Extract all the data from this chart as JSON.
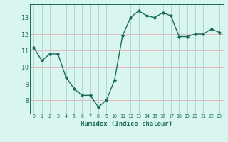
{
  "x": [
    0,
    1,
    2,
    3,
    4,
    5,
    6,
    7,
    8,
    9,
    10,
    11,
    12,
    13,
    14,
    15,
    16,
    17,
    18,
    19,
    20,
    21,
    22,
    23
  ],
  "y": [
    11.2,
    10.4,
    10.8,
    10.8,
    9.4,
    8.7,
    8.3,
    8.3,
    7.6,
    8.0,
    9.2,
    11.9,
    13.0,
    13.4,
    13.1,
    13.0,
    13.3,
    13.1,
    11.85,
    11.85,
    12.0,
    12.0,
    12.3,
    12.1
  ],
  "xlabel": "Humidex (Indice chaleur)",
  "line_color": "#1a6b5a",
  "marker": "D",
  "marker_size": 1.8,
  "bg_color": "#d9f5f0",
  "grid_color": "#b0d8d0",
  "tick_label_color": "#1a6b5a",
  "xlabel_color": "#1a6b5a",
  "ylim": [
    7.2,
    13.8
  ],
  "xlim": [
    -0.5,
    23.5
  ],
  "yticks": [
    8,
    9,
    10,
    11,
    12,
    13
  ],
  "xticks": [
    0,
    1,
    2,
    3,
    4,
    5,
    6,
    7,
    8,
    9,
    10,
    11,
    12,
    13,
    14,
    15,
    16,
    17,
    18,
    19,
    20,
    21,
    22,
    23
  ],
  "xtick_labels": [
    "0",
    "1",
    "2",
    "3",
    "4",
    "5",
    "6",
    "7",
    "8",
    "9",
    "10",
    "11",
    "12",
    "13",
    "14",
    "15",
    "16",
    "17",
    "18",
    "19",
    "20",
    "21",
    "22",
    "23"
  ],
  "linewidth": 1.0,
  "xlabel_fontsize": 6.5,
  "xtick_fontsize": 4.8,
  "ytick_fontsize": 6.0,
  "spine_color": "#1a6b5a",
  "red_grid_color": "#e8b8b8"
}
